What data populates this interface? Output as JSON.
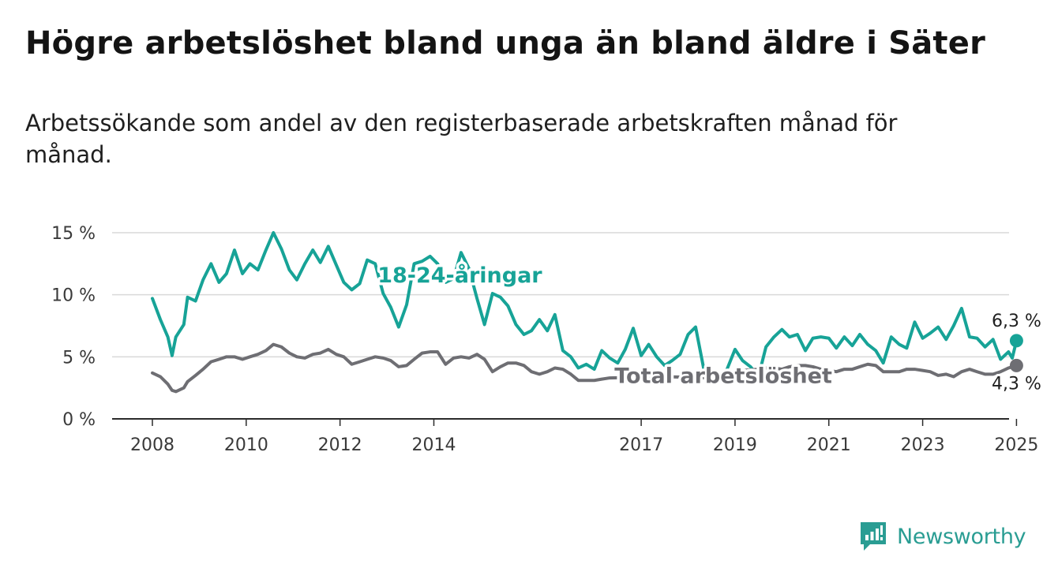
{
  "header": {
    "title": "Högre arbetslöshet bland unga än bland äldre i Säter",
    "subtitle": "Arbetssökande som andel av den registerbaserade arbetskraften månad för månad."
  },
  "brand": {
    "name": "Newsworthy",
    "icon": "newsworthy-logo-icon",
    "color": "#2a9d93"
  },
  "chart_data": {
    "type": "line",
    "title": "Högre arbetslöshet bland unga än bland äldre i Säter",
    "subtitle": "Arbetssökande som andel av den registerbaserade arbetskraften månad för månad.",
    "xlabel": "",
    "ylabel": "",
    "x_ticks": [
      "2008",
      "2010",
      "2012",
      "2014",
      "2017",
      "2019",
      "2021",
      "2023",
      "2025"
    ],
    "y_ticks": [
      "0 %",
      "5 %",
      "10 %",
      "15 %"
    ],
    "ylim": [
      0,
      15
    ],
    "grid": "horizontal",
    "legend": "inline labels",
    "end_labels": [
      "6,3 %",
      "4,3 %"
    ],
    "series": [
      {
        "name": "18-24-åringar",
        "color": "#17a397",
        "points": [
          [
            2008.0,
            9.7
          ],
          [
            2008.17,
            8.0
          ],
          [
            2008.33,
            6.6
          ],
          [
            2008.42,
            5.1
          ],
          [
            2008.5,
            6.6
          ],
          [
            2008.67,
            7.6
          ],
          [
            2008.75,
            9.8
          ],
          [
            2008.92,
            9.5
          ],
          [
            2009.08,
            11.2
          ],
          [
            2009.25,
            12.5
          ],
          [
            2009.42,
            11.0
          ],
          [
            2009.58,
            11.7
          ],
          [
            2009.75,
            13.6
          ],
          [
            2009.92,
            11.7
          ],
          [
            2010.08,
            12.5
          ],
          [
            2010.25,
            12.0
          ],
          [
            2010.42,
            13.6
          ],
          [
            2010.58,
            15.0
          ],
          [
            2010.75,
            13.7
          ],
          [
            2010.92,
            12.0
          ],
          [
            2011.08,
            11.2
          ],
          [
            2011.25,
            12.5
          ],
          [
            2011.42,
            13.6
          ],
          [
            2011.58,
            12.6
          ],
          [
            2011.75,
            13.9
          ],
          [
            2011.92,
            12.4
          ],
          [
            2012.08,
            11.0
          ],
          [
            2012.25,
            10.4
          ],
          [
            2012.42,
            10.9
          ],
          [
            2012.58,
            12.8
          ],
          [
            2012.75,
            12.5
          ],
          [
            2012.92,
            10.1
          ],
          [
            2013.08,
            9.0
          ],
          [
            2013.25,
            7.4
          ],
          [
            2013.42,
            9.2
          ],
          [
            2013.58,
            12.5
          ],
          [
            2013.75,
            12.7
          ],
          [
            2013.92,
            13.1
          ],
          [
            2014.08,
            12.5
          ],
          [
            2014.25,
            11.0
          ],
          [
            2014.42,
            11.3
          ],
          [
            2014.58,
            13.4
          ],
          [
            2014.75,
            12.1
          ],
          [
            2014.92,
            9.7
          ],
          [
            2015.08,
            7.6
          ],
          [
            2015.25,
            10.1
          ],
          [
            2015.42,
            9.8
          ],
          [
            2015.58,
            9.1
          ],
          [
            2015.75,
            7.6
          ],
          [
            2015.92,
            6.8
          ],
          [
            2016.08,
            7.1
          ],
          [
            2016.25,
            8.0
          ],
          [
            2016.42,
            7.1
          ],
          [
            2016.58,
            8.4
          ],
          [
            2016.75,
            5.5
          ],
          [
            2016.92,
            5.0
          ],
          [
            2017.08,
            4.1
          ],
          [
            2017.25,
            4.4
          ],
          [
            2017.42,
            4.0
          ],
          [
            2017.58,
            5.5
          ],
          [
            2017.75,
            4.9
          ],
          [
            2017.92,
            4.5
          ],
          [
            2018.08,
            5.6
          ],
          [
            2018.25,
            7.3
          ],
          [
            2018.42,
            5.1
          ],
          [
            2018.58,
            6.0
          ],
          [
            2018.75,
            5.0
          ],
          [
            2018.92,
            4.3
          ],
          [
            2019.08,
            4.7
          ],
          [
            2019.25,
            5.2
          ],
          [
            2019.42,
            6.8
          ],
          [
            2019.58,
            7.4
          ],
          [
            2019.75,
            4.1
          ],
          [
            2019.92,
            3.3
          ],
          [
            2020.08,
            3.2
          ],
          [
            2020.25,
            4.0
          ],
          [
            2020.42,
            5.6
          ],
          [
            2020.58,
            4.7
          ],
          [
            2020.75,
            4.2
          ],
          [
            2020.92,
            3.4
          ],
          [
            2021.08,
            5.8
          ],
          [
            2021.25,
            6.6
          ],
          [
            2021.42,
            7.2
          ],
          [
            2021.58,
            6.6
          ],
          [
            2021.75,
            6.8
          ],
          [
            2021.92,
            5.5
          ],
          [
            2022.08,
            6.5
          ],
          [
            2022.25,
            6.6
          ],
          [
            2022.42,
            6.5
          ],
          [
            2022.58,
            5.7
          ],
          [
            2022.75,
            6.6
          ],
          [
            2022.92,
            5.9
          ],
          [
            2023.08,
            6.8
          ],
          [
            2023.25,
            6.0
          ],
          [
            2023.42,
            5.5
          ],
          [
            2023.58,
            4.5
          ],
          [
            2023.75,
            6.6
          ],
          [
            2023.92,
            6.0
          ],
          [
            2024.08,
            5.7
          ],
          [
            2024.25,
            7.8
          ],
          [
            2024.42,
            6.5
          ],
          [
            2024.58,
            6.9
          ],
          [
            2024.75,
            7.4
          ],
          [
            2024.92,
            6.4
          ],
          [
            2025.08,
            7.5
          ],
          [
            2025.25,
            8.9
          ],
          [
            2025.42,
            6.6
          ],
          [
            2025.58,
            6.5
          ],
          [
            2025.75,
            5.8
          ],
          [
            2025.92,
            6.4
          ],
          [
            2026.08,
            4.8
          ],
          [
            2026.25,
            5.4
          ],
          [
            2026.33,
            4.9
          ],
          [
            2026.42,
            6.3
          ]
        ]
      },
      {
        "name": "Total arbetslöshet",
        "color": "#6e6e73",
        "points": [
          [
            2008.0,
            3.7
          ],
          [
            2008.17,
            3.4
          ],
          [
            2008.33,
            2.8
          ],
          [
            2008.42,
            2.3
          ],
          [
            2008.5,
            2.2
          ],
          [
            2008.67,
            2.5
          ],
          [
            2008.75,
            3.0
          ],
          [
            2008.92,
            3.5
          ],
          [
            2009.08,
            4.0
          ],
          [
            2009.25,
            4.6
          ],
          [
            2009.42,
            4.8
          ],
          [
            2009.58,
            5.0
          ],
          [
            2009.75,
            5.0
          ],
          [
            2009.92,
            4.8
          ],
          [
            2010.08,
            5.0
          ],
          [
            2010.25,
            5.2
          ],
          [
            2010.42,
            5.5
          ],
          [
            2010.58,
            6.0
          ],
          [
            2010.75,
            5.8
          ],
          [
            2010.92,
            5.3
          ],
          [
            2011.08,
            5.0
          ],
          [
            2011.25,
            4.9
          ],
          [
            2011.42,
            5.2
          ],
          [
            2011.58,
            5.3
          ],
          [
            2011.75,
            5.6
          ],
          [
            2011.92,
            5.2
          ],
          [
            2012.08,
            5.0
          ],
          [
            2012.25,
            4.4
          ],
          [
            2012.42,
            4.6
          ],
          [
            2012.58,
            4.8
          ],
          [
            2012.75,
            5.0
          ],
          [
            2012.92,
            4.9
          ],
          [
            2013.08,
            4.7
          ],
          [
            2013.25,
            4.2
          ],
          [
            2013.42,
            4.3
          ],
          [
            2013.58,
            4.8
          ],
          [
            2013.75,
            5.3
          ],
          [
            2013.92,
            5.4
          ],
          [
            2014.08,
            5.4
          ],
          [
            2014.25,
            4.4
          ],
          [
            2014.42,
            4.9
          ],
          [
            2014.58,
            5.0
          ],
          [
            2014.75,
            4.9
          ],
          [
            2014.92,
            5.2
          ],
          [
            2015.08,
            4.8
          ],
          [
            2015.25,
            3.8
          ],
          [
            2015.42,
            4.2
          ],
          [
            2015.58,
            4.5
          ],
          [
            2015.75,
            4.5
          ],
          [
            2015.92,
            4.3
          ],
          [
            2016.08,
            3.8
          ],
          [
            2016.25,
            3.6
          ],
          [
            2016.42,
            3.8
          ],
          [
            2016.58,
            4.1
          ],
          [
            2016.75,
            4.0
          ],
          [
            2016.92,
            3.6
          ],
          [
            2017.08,
            3.1
          ],
          [
            2017.25,
            3.1
          ],
          [
            2017.42,
            3.1
          ],
          [
            2017.58,
            3.2
          ],
          [
            2017.75,
            3.3
          ],
          [
            2018.92,
            3.4
          ],
          [
            2019.92,
            3.3
          ],
          [
            2020.25,
            3.6
          ],
          [
            2020.58,
            3.9
          ],
          [
            2020.92,
            4.0
          ],
          [
            2021.08,
            4.1
          ],
          [
            2021.25,
            4.1
          ],
          [
            2021.42,
            4.0
          ],
          [
            2021.58,
            4.2
          ],
          [
            2021.75,
            4.3
          ],
          [
            2021.92,
            4.3
          ],
          [
            2022.08,
            4.2
          ],
          [
            2022.25,
            4.0
          ],
          [
            2022.42,
            3.9
          ],
          [
            2022.58,
            3.8
          ],
          [
            2022.75,
            4.0
          ],
          [
            2022.92,
            4.0
          ],
          [
            2023.08,
            4.2
          ],
          [
            2023.25,
            4.4
          ],
          [
            2023.42,
            4.3
          ],
          [
            2023.58,
            3.8
          ],
          [
            2023.75,
            3.8
          ],
          [
            2023.92,
            3.8
          ],
          [
            2024.08,
            4.0
          ],
          [
            2024.25,
            4.0
          ],
          [
            2024.42,
            3.9
          ],
          [
            2024.58,
            3.8
          ],
          [
            2024.75,
            3.5
          ],
          [
            2024.92,
            3.6
          ],
          [
            2025.08,
            3.4
          ],
          [
            2025.25,
            3.8
          ],
          [
            2025.42,
            4.0
          ],
          [
            2025.58,
            3.8
          ],
          [
            2025.75,
            3.6
          ],
          [
            2025.92,
            3.6
          ],
          [
            2026.08,
            3.8
          ],
          [
            2026.25,
            4.1
          ],
          [
            2026.33,
            4.2
          ],
          [
            2026.42,
            4.3
          ]
        ]
      }
    ],
    "series_labels": [
      {
        "text": "18-24-åringar",
        "series": 0,
        "x": 2012.8,
        "y": 11.0
      },
      {
        "text": "Total arbetslöshet",
        "series": 1,
        "x": 2017.85,
        "y": 2.9
      }
    ]
  }
}
